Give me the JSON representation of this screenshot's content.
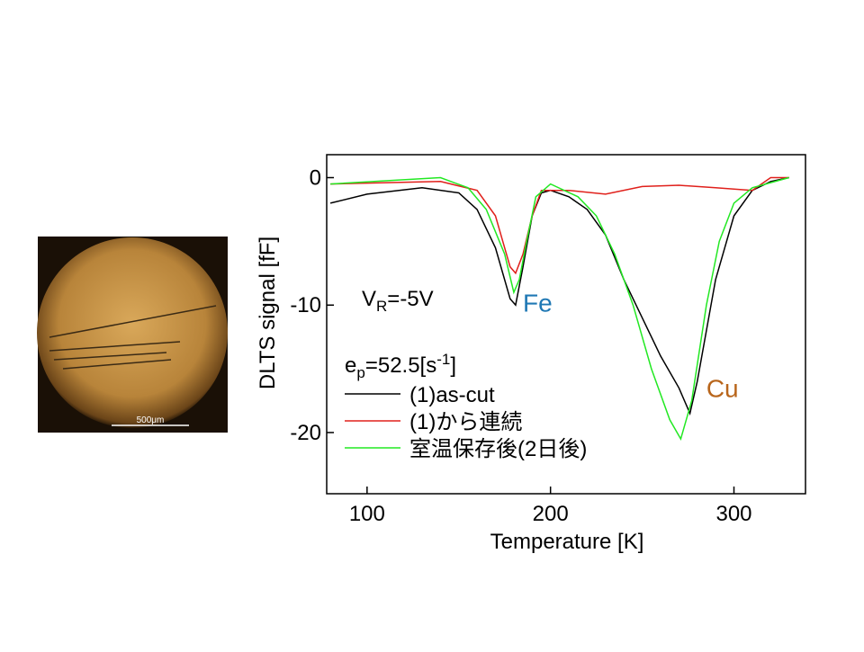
{
  "chart_data": {
    "type": "line",
    "xlabel": "Temperature [K]",
    "ylabel": "DLTS signal [fF]",
    "xlim": [
      78,
      339
    ],
    "ylim": [
      -24.8,
      1.8
    ],
    "xticks": [
      100,
      200,
      300
    ],
    "yticks": [
      0,
      -10,
      -20
    ],
    "legend_title": {
      "main": "e",
      "sub": "p",
      "rest": "=52.5[s",
      "sup": "-1",
      "end": "]"
    },
    "bias_label": {
      "main": "V",
      "sub": "R",
      "rest": "=-5V"
    },
    "annotations": [
      {
        "text": "Fe",
        "color": "#1f78b4",
        "x": 182,
        "y": -10.5
      },
      {
        "text": "Cu",
        "color": "#b8651b",
        "x": 282,
        "y": -17.2
      }
    ],
    "legend": "lower left",
    "series": [
      {
        "name": "(1)as-cut",
        "color": "#000000",
        "x": [
          80,
          100,
          130,
          150,
          160,
          170,
          178,
          181,
          185,
          190,
          195,
          200,
          210,
          220,
          230,
          240,
          250,
          260,
          270,
          276,
          280,
          290,
          300,
          310,
          320,
          330
        ],
        "values": [
          -2,
          -1.3,
          -0.8,
          -1.2,
          -2.5,
          -5.5,
          -9.5,
          -10,
          -7,
          -3,
          -1.2,
          -1,
          -1.5,
          -2.5,
          -4.5,
          -8,
          -11,
          -14,
          -16.5,
          -18.5,
          -16,
          -8,
          -3,
          -1,
          -0.3,
          0
        ]
      },
      {
        "name": "(1)から連続",
        "color": "#e0201b",
        "x": [
          80,
          140,
          160,
          170,
          178,
          181,
          185,
          190,
          195,
          210,
          230,
          250,
          270,
          290,
          310,
          320,
          330
        ],
        "values": [
          -0.5,
          -0.3,
          -1,
          -3,
          -7,
          -7.5,
          -6,
          -3,
          -1,
          -1,
          -1.3,
          -0.7,
          -0.6,
          -0.8,
          -1,
          0,
          0
        ]
      },
      {
        "name": "室温保存後(2日後)",
        "color": "#22e822",
        "x": [
          80,
          140,
          155,
          165,
          175,
          180,
          183,
          187,
          192,
          200,
          215,
          225,
          235,
          245,
          255,
          265,
          271,
          277,
          285,
          292,
          300,
          310,
          330
        ],
        "values": [
          -0.5,
          0,
          -0.8,
          -2.5,
          -6,
          -9,
          -8,
          -5,
          -1.5,
          -0.5,
          -1.5,
          -3,
          -6,
          -10,
          -15,
          -19,
          -20.5,
          -17.5,
          -10,
          -5,
          -2,
          -0.8,
          0
        ]
      }
    ]
  },
  "micrograph": {
    "scale_label": "500μm"
  }
}
